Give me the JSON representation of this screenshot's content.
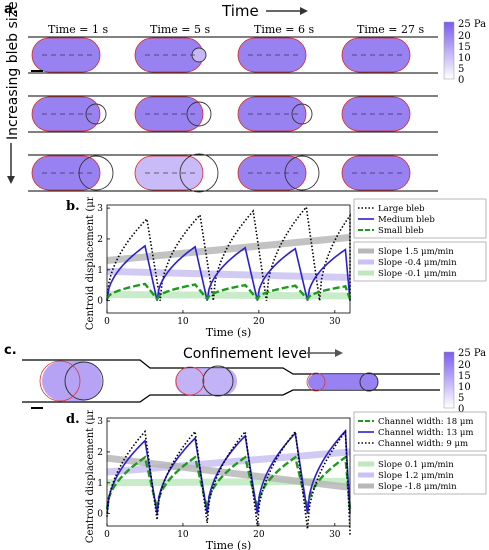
{
  "panels": {
    "a": {
      "label": "a.",
      "time_header": "Time",
      "row_axis_label": "Increasing bleb size",
      "times": [
        "Time = 1 s",
        "Time = 5 s",
        "Time = 6 s",
        "Time = 27 s"
      ]
    },
    "c": {
      "label": "c.",
      "confinement_label": "Confinement level"
    }
  },
  "colorbar": {
    "unit": "Pa",
    "ticks": [
      "25 Pa",
      "20",
      "15",
      "10",
      "5",
      "0"
    ],
    "color_high": "#7b5cf0",
    "color_low": "#ffffff"
  },
  "chart_data": [
    {
      "id": "b",
      "panel_label": "b.",
      "type": "line",
      "xlabel": "Time (s)",
      "ylabel": "Centroid displacement (μm)",
      "xlim": [
        0,
        32
      ],
      "ylim": [
        -0.4,
        3.1
      ],
      "xticks": [
        0,
        10,
        20,
        30
      ],
      "yticks": [
        0,
        1,
        2,
        3
      ],
      "legend_position": "top-right",
      "series": [
        {
          "name": "Large bleb",
          "color": "#000000",
          "style": "dotted",
          "period": 7,
          "peak": 2.7,
          "trough": 0.0,
          "peak_growth": 0.13,
          "trough_growth": 0.0
        },
        {
          "name": "Medium bleb",
          "color": "#2b1fd6",
          "style": "solid",
          "period": 6.6,
          "peak": 1.8,
          "trough": 0.0,
          "peak_growth": -0.03,
          "trough_growth": 0.0
        },
        {
          "name": "Small bleb",
          "color": "#1a9e1a",
          "style": "dashed",
          "period": 6.6,
          "peak": 0.55,
          "trough": 0.05,
          "peak_growth": -0.02,
          "trough_growth": 0.0
        }
      ],
      "trend_lines": [
        {
          "name": "Slope 1.5 μm/min",
          "color": "#b8b8b8",
          "start": 1.3,
          "end": 2.05
        },
        {
          "name": "Slope -0.4 μm/min",
          "color": "#c9c2f2",
          "start": 0.95,
          "end": 0.75
        },
        {
          "name": "Slope -0.1 μm/min",
          "color": "#bfe8bf",
          "start": 0.2,
          "end": 0.15
        }
      ]
    },
    {
      "id": "d",
      "panel_label": "d.",
      "type": "line",
      "xlabel": "Time (s)",
      "ylabel": "Centroid displacement (μm)",
      "xlim": [
        0,
        32
      ],
      "ylim": [
        -0.4,
        3.1
      ],
      "xticks": [
        0,
        10,
        20,
        30
      ],
      "yticks": [
        0,
        1,
        2,
        3
      ],
      "legend_position": "top-right",
      "series": [
        {
          "name": "Channel width: 18 μm",
          "color": "#1a9e1a",
          "style": "dashed",
          "period": 6.6,
          "peak": 1.85,
          "trough": 0.15,
          "peak_growth": 0.0,
          "trough_growth": 0.0
        },
        {
          "name": "Channel width: 13 μm",
          "color": "#2b1fd6",
          "style": "solid",
          "period": 6.6,
          "peak": 2.4,
          "trough": 0.0,
          "peak_growth": 0.08,
          "trough_growth": 0.0
        },
        {
          "name": "Channel width:  9 μm",
          "color": "#000000",
          "style": "dotted",
          "period": 6.6,
          "peak": 2.7,
          "trough": -0.1,
          "peak_growth": 0.0,
          "trough_growth": -0.1
        }
      ],
      "trend_lines": [
        {
          "name": "Slope  0.1 μm/min",
          "color": "#bfe8bf",
          "start": 1.0,
          "end": 1.05
        },
        {
          "name": "Slope  1.2 μm/min",
          "color": "#c9c2f2",
          "start": 1.35,
          "end": 2.0
        },
        {
          "name": "Slope -1.8 μm/min",
          "color": "#b8b8b8",
          "start": 1.8,
          "end": 0.85
        }
      ]
    }
  ]
}
